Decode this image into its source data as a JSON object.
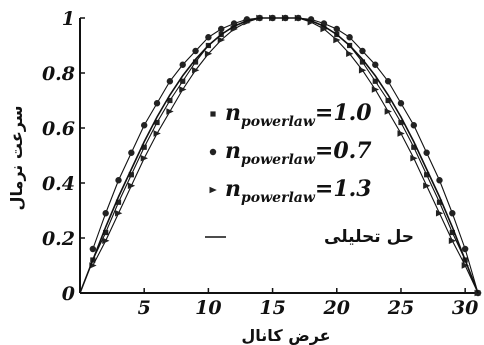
{
  "chart_data": {
    "type": "line",
    "xlabel": "عرض کانال",
    "ylabel": "سرعت نرمال",
    "xlim": [
      0,
      31
    ],
    "ylim": [
      0,
      1
    ],
    "xticks": [
      "5",
      "10",
      "15",
      "20",
      "25",
      "30"
    ],
    "yticks": [
      "0",
      "0.2",
      "0.4",
      "0.6",
      "0.8",
      "1"
    ],
    "legend_position": "center",
    "series": [
      {
        "name_main": "n",
        "name_sub": "powerlaw",
        "name_suffix": "=1.0",
        "marker": "square",
        "x": [
          1,
          2,
          3,
          4,
          5,
          6,
          7,
          8,
          9,
          10,
          11,
          12,
          13,
          14,
          15,
          16,
          17,
          18,
          19,
          20,
          21,
          22,
          23,
          24,
          25,
          26,
          27,
          28,
          29,
          30,
          31
        ],
        "values": [
          0.12,
          0.22,
          0.33,
          0.43,
          0.53,
          0.62,
          0.7,
          0.77,
          0.84,
          0.9,
          0.94,
          0.97,
          0.99,
          1.0,
          1.0,
          1.0,
          1.0,
          0.99,
          0.97,
          0.94,
          0.9,
          0.84,
          0.77,
          0.7,
          0.62,
          0.53,
          0.43,
          0.33,
          0.22,
          0.12,
          0.0
        ]
      },
      {
        "name_main": "n",
        "name_sub": "powerlaw",
        "name_suffix": "=0.7",
        "marker": "circle",
        "x": [
          1,
          2,
          3,
          4,
          5,
          6,
          7,
          8,
          9,
          10,
          11,
          12,
          13,
          14,
          15,
          16,
          17,
          18,
          19,
          20,
          21,
          22,
          23,
          24,
          25,
          26,
          27,
          28,
          29,
          30,
          31
        ],
        "values": [
          0.16,
          0.29,
          0.41,
          0.51,
          0.61,
          0.69,
          0.77,
          0.83,
          0.88,
          0.93,
          0.96,
          0.98,
          0.995,
          1.0,
          1.0,
          1.0,
          1.0,
          0.995,
          0.98,
          0.96,
          0.93,
          0.88,
          0.83,
          0.77,
          0.69,
          0.61,
          0.51,
          0.41,
          0.29,
          0.16,
          0.0
        ]
      },
      {
        "name_main": "n",
        "name_sub": "powerlaw",
        "name_suffix": "=1.3",
        "marker": "triangle",
        "x": [
          1,
          2,
          3,
          4,
          5,
          6,
          7,
          8,
          9,
          10,
          11,
          12,
          13,
          14,
          15,
          16,
          17,
          18,
          19,
          20,
          21,
          22,
          23,
          24,
          25,
          26,
          27,
          28,
          29,
          30,
          31
        ],
        "values": [
          0.1,
          0.19,
          0.29,
          0.39,
          0.49,
          0.58,
          0.66,
          0.74,
          0.81,
          0.87,
          0.92,
          0.96,
          0.985,
          1.0,
          1.0,
          1.0,
          1.0,
          0.985,
          0.96,
          0.92,
          0.87,
          0.81,
          0.74,
          0.66,
          0.58,
          0.49,
          0.39,
          0.29,
          0.19,
          0.1,
          0.0
        ]
      },
      {
        "name": "حل تحلیلی",
        "marker": "line",
        "x": [
          0,
          1,
          2,
          3,
          4,
          5,
          6,
          7,
          8,
          9,
          10,
          11,
          12,
          13,
          14,
          15,
          15.5,
          16,
          17,
          18,
          19,
          20,
          21,
          22,
          23,
          24,
          25,
          26,
          27,
          28,
          29,
          30,
          31
        ],
        "values": [
          0.0,
          0.12,
          0.24,
          0.35,
          0.45,
          0.55,
          0.64,
          0.72,
          0.79,
          0.85,
          0.9,
          0.94,
          0.97,
          0.99,
          1.0,
          1.0,
          1.0,
          1.0,
          1.0,
          0.99,
          0.97,
          0.94,
          0.9,
          0.85,
          0.79,
          0.72,
          0.64,
          0.55,
          0.45,
          0.35,
          0.24,
          0.12,
          0.0
        ]
      }
    ]
  }
}
